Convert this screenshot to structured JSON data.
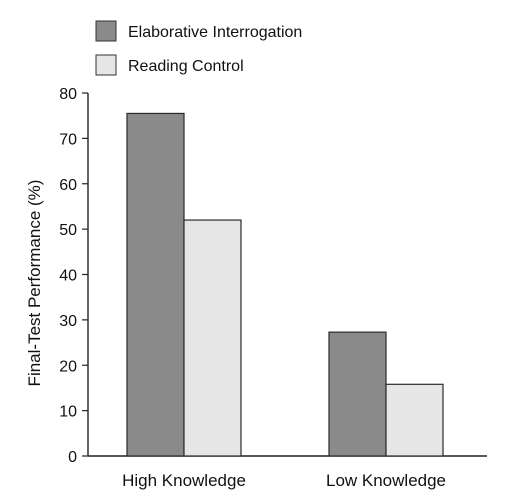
{
  "chart_data": {
    "type": "bar",
    "categories": [
      "High Knowledge",
      "Low Knowledge"
    ],
    "series": [
      {
        "name": "Elaborative Interrogation",
        "values": [
          75.5,
          27.3
        ],
        "color": "#8a8a8a"
      },
      {
        "name": "Reading Control",
        "values": [
          52,
          15.8
        ],
        "color": "#e6e6e6"
      }
    ],
    "xlabel": "",
    "ylabel": "Final-Test Performance (%)",
    "ylim": [
      0,
      80
    ],
    "yticks": [
      0,
      10,
      20,
      30,
      40,
      50,
      60,
      70,
      80
    ],
    "legend": "top-left",
    "grid": false
  }
}
